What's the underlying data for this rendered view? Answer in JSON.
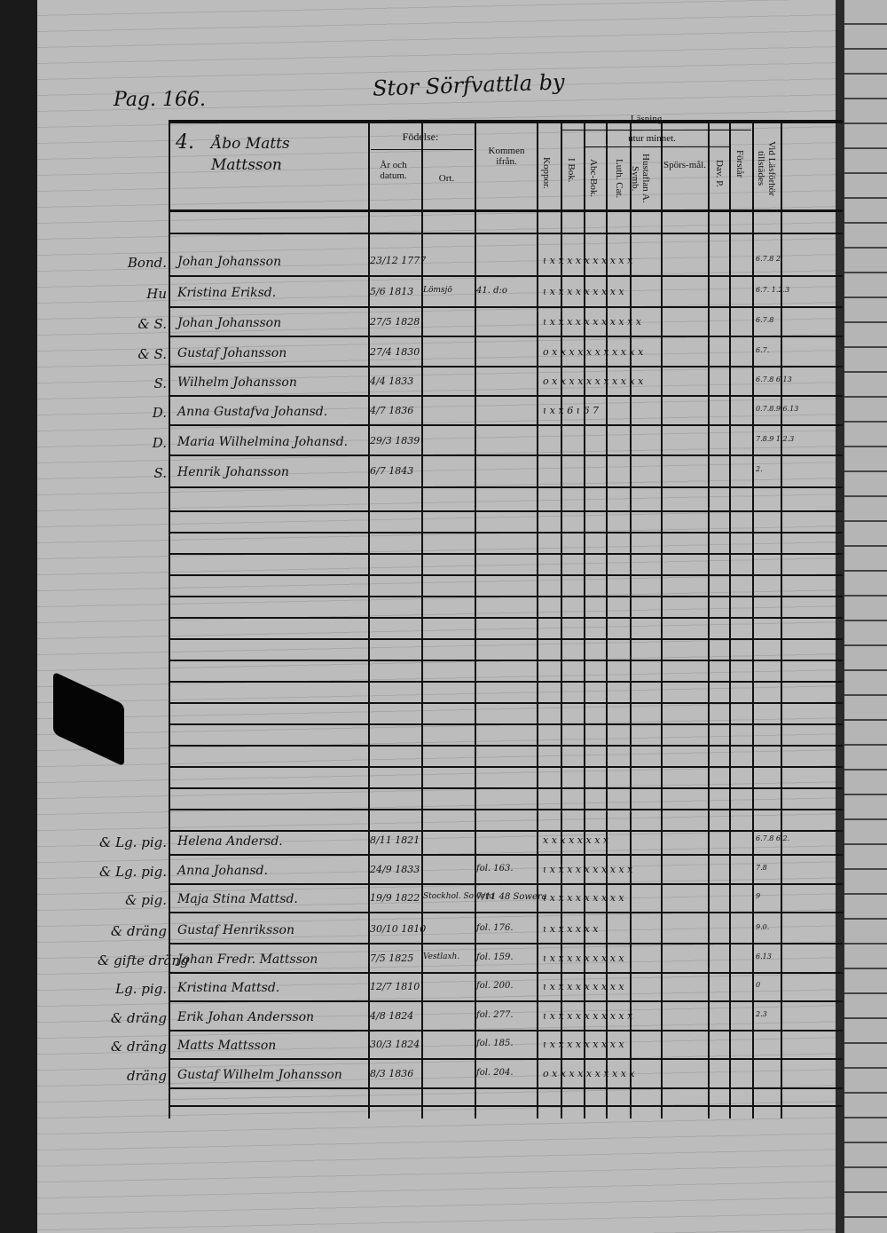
{
  "page_ref": "Pag. 166.",
  "village": "Stor Sörfvattla by",
  "household": {
    "number": "4.",
    "name": "Åbo Matts Mattsson"
  },
  "headers": {
    "fodelse": "Födelse:",
    "ar_och_datum": "År och datum.",
    "ort": "Ort.",
    "kommen_ifran": "Kommen ifrån.",
    "koppor": "Koppor.",
    "lasning": "Läsning,",
    "i_bok": "I Bok.",
    "utur_minnet": "utur minnet.",
    "abc_bok": "Abc-Bok.",
    "luth_cat": "Luth. Cat.",
    "hustaflan": "Hustaflan A. Symb.",
    "sporsmal": "Spörs-mål.",
    "dav_p": "Dav. P.",
    "forstar": "Förstår",
    "vid_lasforhor": "Vid Läsförhör tillstädes"
  },
  "rows": [
    {
      "role": "Bond.",
      "name": "Johan Johansson",
      "date": "23/12 1777",
      "ort": "",
      "from": "",
      "marks": "ɩ  x  x  x  x  x x  x x x     x",
      "vid": "6.7.8 2"
    },
    {
      "role": "Hu",
      "name": "Kristina Eriksd.",
      "date": "5/6 1813",
      "ort": "Lömsjö",
      "from": "41. d:o",
      "marks": "ɩ  x  x  x  x  x x  x x x",
      "vid": "6.7. 1.2.3"
    },
    {
      "role": "& S.",
      "name": "Johan Johansson",
      "date": "27/5 1828",
      "ort": "",
      "from": "",
      "marks": "ɩ  x  x  x  x  x x  x x x   x  x",
      "vid": "6.7.8"
    },
    {
      "role": "& S.",
      "name": "Gustaf Johansson",
      "date": "27/4 1830",
      "ort": "",
      "from": "",
      "marks": "o  x  x  x  x  x x  x x x   x  x",
      "vid": "6.7."
    },
    {
      "role": "S.",
      "name": "Wilhelm Johansson",
      "date": "4/4 1833",
      "ort": "",
      "from": "",
      "marks": "o  x  x  x  x  x x  x x x   x  x",
      "vid": "6.7.8 6.13"
    },
    {
      "role": "D.",
      "name": "Anna Gustafva Johansd.",
      "date": "4/7 1836",
      "ort": "",
      "from": "",
      "marks": "ɩ  x  x  6  ɩ        6   7",
      "vid": "0.7.8.9 6.13"
    },
    {
      "role": "D.",
      "name": "Maria Wilhelmina Johansd.",
      "date": "29/3 1839",
      "ort": "",
      "from": "",
      "marks": "",
      "vid": "7.8.9 1.2.3"
    },
    {
      "role": "S.",
      "name": "Henrik Johansson",
      "date": "6/7 1843",
      "ort": "",
      "from": "",
      "marks": "",
      "vid": "2."
    },
    {
      "role": "& Lg. pig.",
      "name": "Helena Andersd.",
      "date": "8/11 1821",
      "ort": "",
      "from": "",
      "marks": "   x  x  x  x  x  x x      x",
      "vid": "6.7.8 6.2."
    },
    {
      "role": "& Lg. pig.",
      "name": "Anna Johansd.",
      "date": "24/9 1833",
      "ort": "",
      "from": "fol. 163.",
      "marks": "ɩ  x  x  x  x  x x  x x x  x",
      "vid": "7.8"
    },
    {
      "role": "& pig.",
      "name": "Maja Stina Mattsd.",
      "date": "19/9 1822",
      "ort": "Stockhol. Sowera",
      "from": "7/11 48 Sowera",
      "marks": "ɩ  x  x  x  x  x x  x x x",
      "vid": "9"
    },
    {
      "role": "& dräng",
      "name": "Gustaf Henriksson",
      "date": "30/10 1810",
      "ort": "",
      "from": "fol. 176.",
      "marks": "ɩ  x  x  x  x  x x",
      "vid": "9.0."
    },
    {
      "role": "& gifte dräng",
      "name": "Johan Fredr. Mattsson",
      "date": "7/5 1825",
      "ort": "Vestlaxh.",
      "from": "fol. 159.",
      "marks": "ɩ  x  x  x  x  x x  x x x",
      "vid": "6.13"
    },
    {
      "role": "Lg. pig.",
      "name": "Kristina Mattsd.",
      "date": "12/7 1810",
      "ort": "",
      "from": "fol. 200.",
      "marks": "ɩ  x  x  x  x  x x  x x x",
      "vid": "0"
    },
    {
      "role": "& dräng",
      "name": "Erik Johan Andersson",
      "date": "4/8 1824",
      "ort": "",
      "from": "fol. 277.",
      "marks": "ɩ  x  x  x  x  x x  x x x   x",
      "vid": "2.3"
    },
    {
      "role": "& dräng",
      "name": "Matts Mattsson",
      "date": "30/3 1824",
      "ort": "",
      "from": "fol. 185.",
      "marks": "ɩ  x  x  x  x  x x  x x x",
      "vid": ""
    },
    {
      "role": "dräng",
      "name": "Gustaf Wilhelm Johansson",
      "date": "8/3 1836",
      "ort": "",
      "from": "fol. 204.",
      "marks": "o  x  x  x  x  x x  x x x   x",
      "vid": ""
    }
  ]
}
